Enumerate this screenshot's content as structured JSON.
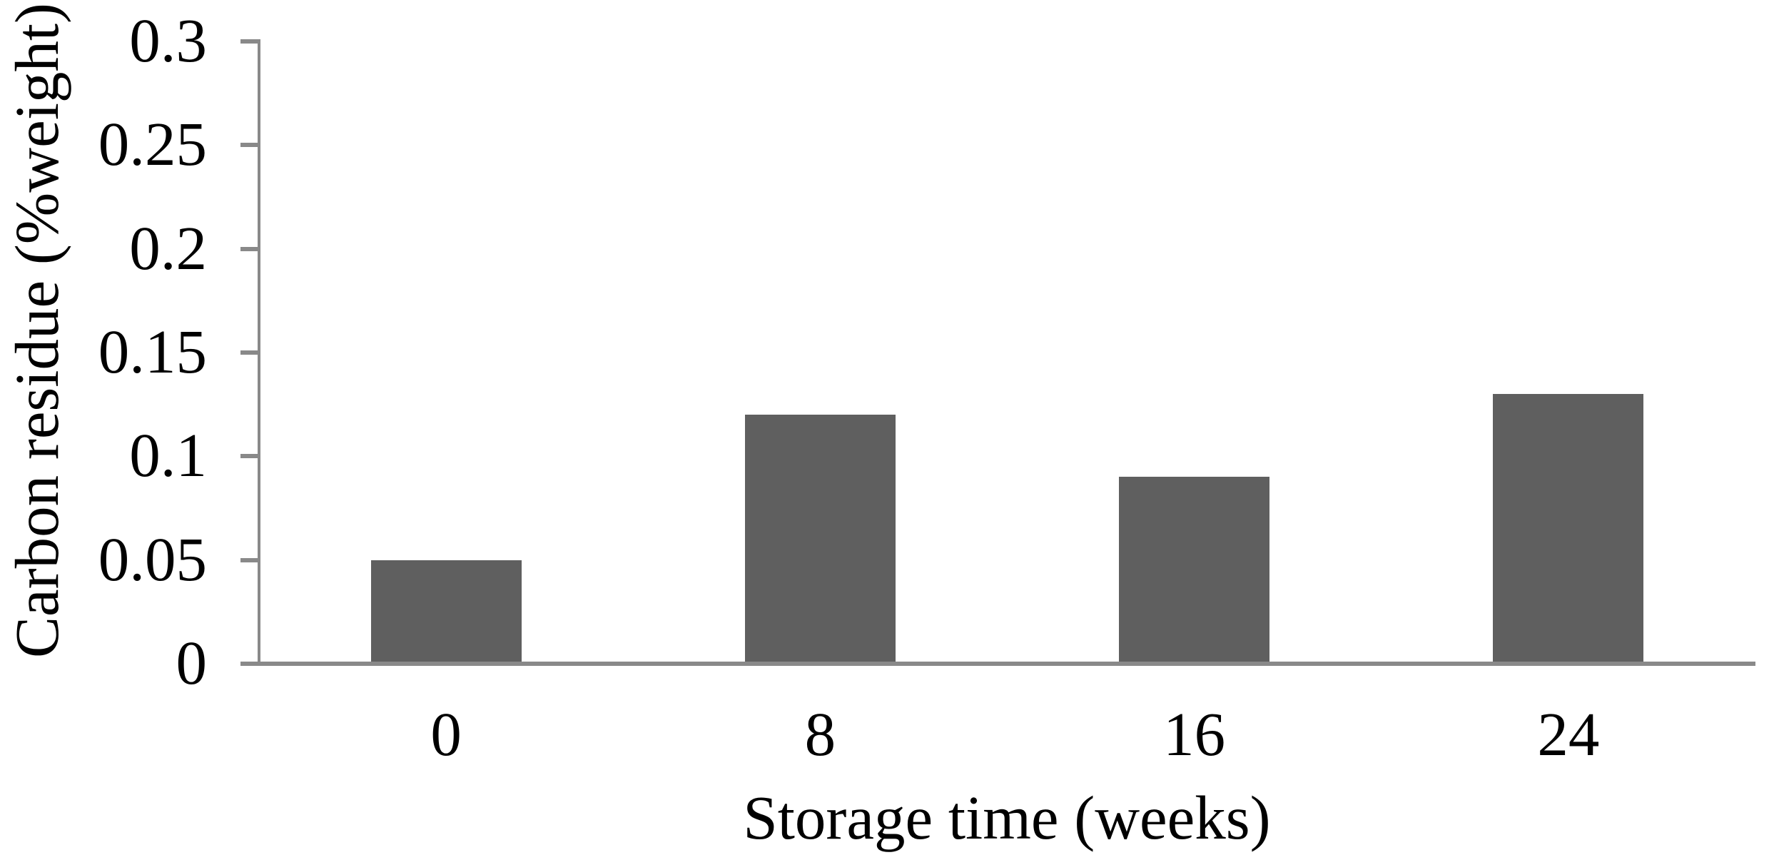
{
  "chart_data": {
    "type": "bar",
    "title": "",
    "xlabel": "Storage time (weeks)",
    "ylabel": "Carbon residue (%weight)",
    "categories": [
      "0",
      "8",
      "16",
      "24"
    ],
    "values": [
      0.05,
      0.12,
      0.09,
      0.13
    ],
    "ylim": [
      0,
      0.3
    ],
    "ytick_step": 0.05,
    "ytick_labels": [
      "0",
      "0.05",
      "0.1",
      "0.15",
      "0.2",
      "0.25",
      "0.3"
    ],
    "grid": false,
    "legend": "none",
    "bar_color": "#5F5F5F",
    "axis_color": "#898989",
    "text_color": "#000000",
    "background_color": "#FFFFFF"
  }
}
